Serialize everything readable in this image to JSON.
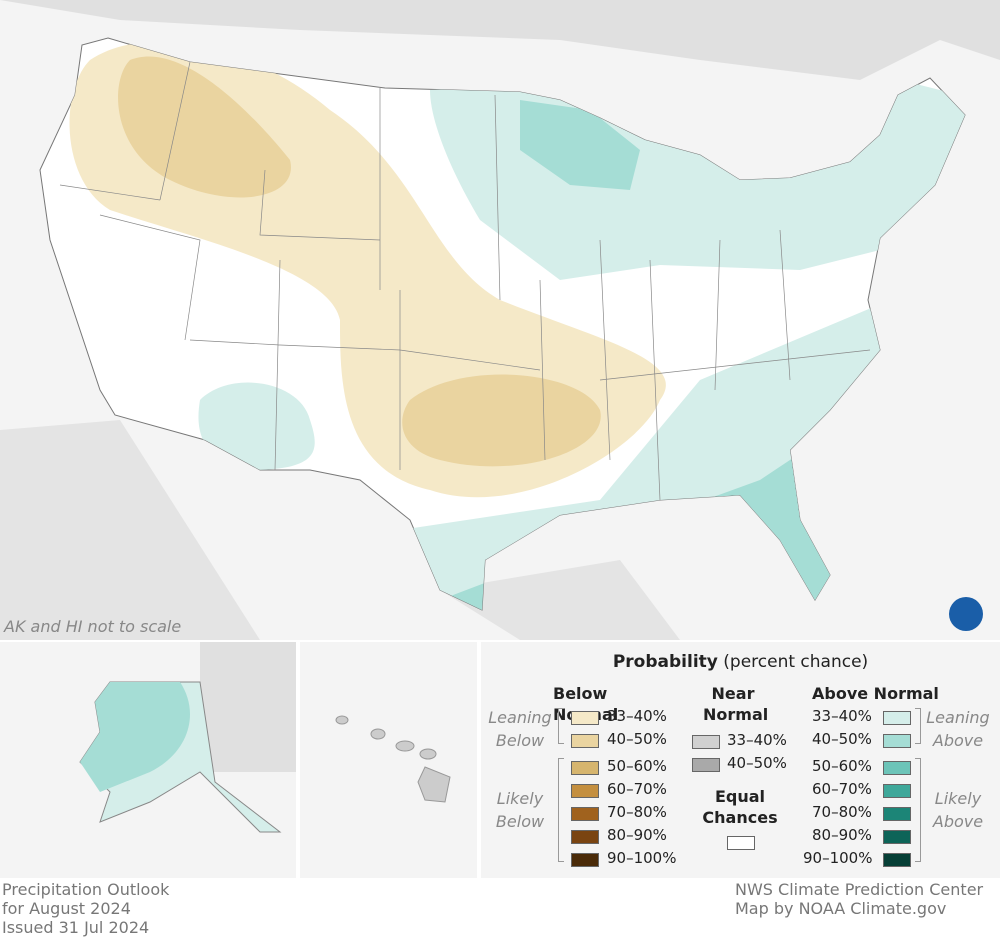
{
  "map": {
    "note": "AK and HI not to scale"
  },
  "legend": {
    "title": "Probability",
    "subtitle": "(percent chance)",
    "below": {
      "heading": "Below Normal",
      "leaning": "Leaning Below",
      "likely": "Likely Below",
      "items": [
        {
          "label": "33–40%",
          "color": "#f5e9c8"
        },
        {
          "label": "40–50%",
          "color": "#ead4a0"
        },
        {
          "label": "50–60%",
          "color": "#d6b56e"
        },
        {
          "label": "60–70%",
          "color": "#c48f3f"
        },
        {
          "label": "70–80%",
          "color": "#a0621e"
        },
        {
          "label": "80–90%",
          "color": "#7a4411"
        },
        {
          "label": "90–100%",
          "color": "#4a2a08"
        }
      ]
    },
    "near": {
      "heading": "Near Normal",
      "items": [
        {
          "label": "33–40%",
          "color": "#d0d0d0"
        },
        {
          "label": "40–50%",
          "color": "#a9a9a9"
        }
      ]
    },
    "equal": {
      "heading": "Equal Chances",
      "color": "#ffffff"
    },
    "above": {
      "heading": "Above Normal",
      "leaning": "Leaning Above",
      "likely": "Likely Above",
      "items": [
        {
          "label": "33–40%",
          "color": "#d5eeea"
        },
        {
          "label": "40–50%",
          "color": "#a5ddd5"
        },
        {
          "label": "50–60%",
          "color": "#6cc4b8"
        },
        {
          "label": "60–70%",
          "color": "#3fa89a"
        },
        {
          "label": "70–80%",
          "color": "#1c8577"
        },
        {
          "label": "80–90%",
          "color": "#0d6458"
        },
        {
          "label": "90–100%",
          "color": "#063f36"
        }
      ]
    }
  },
  "footer": {
    "left": [
      "Precipitation Outlook",
      "for August 2024",
      "Issued 31 Jul 2024"
    ],
    "right": [
      "NWS Climate Prediction Center",
      "Map by NOAA Climate.gov"
    ]
  }
}
